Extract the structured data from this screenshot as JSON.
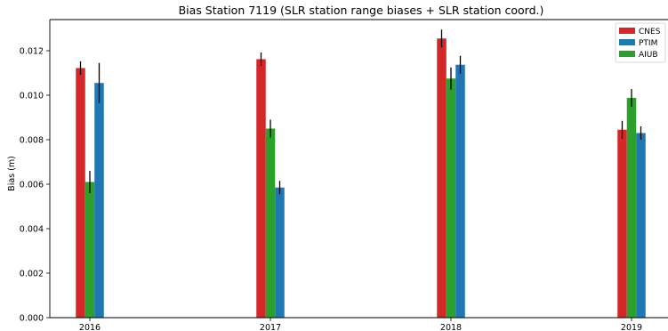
{
  "chart_data": {
    "type": "bar",
    "title": "Bias Station 7119 (SLR station range biases + SLR station coord.)",
    "xlabel": "",
    "ylabel": "Bias (m)",
    "ylim": [
      0,
      0.0134
    ],
    "yticks": [
      "0.000",
      "0.002",
      "0.004",
      "0.006",
      "0.008",
      "0.010",
      "0.012"
    ],
    "categories": [
      "2016",
      "2017",
      "2018",
      "2019"
    ],
    "legend_position": "top-right",
    "grid": false,
    "series": [
      {
        "name": "CNES",
        "color": "#d62728",
        "values": [
          0.01122,
          0.01162,
          0.01255,
          0.00845
        ],
        "errors": [
          0.0003,
          0.0003,
          0.0004,
          0.0004
        ]
      },
      {
        "name": "AIUB",
        "color": "#2ca02c",
        "values": [
          0.0061,
          0.0085,
          0.01075,
          0.00988
        ],
        "errors": [
          0.0005,
          0.0004,
          0.0005,
          0.0004
        ]
      },
      {
        "name": "PTIM",
        "color": "#1f77b4",
        "values": [
          0.01055,
          0.00585,
          0.01137,
          0.0083
        ],
        "errors": [
          0.0009,
          0.0003,
          0.0004,
          0.0003
        ]
      }
    ],
    "legend_order": [
      "CNES",
      "PTIM",
      "AIUB"
    ]
  }
}
